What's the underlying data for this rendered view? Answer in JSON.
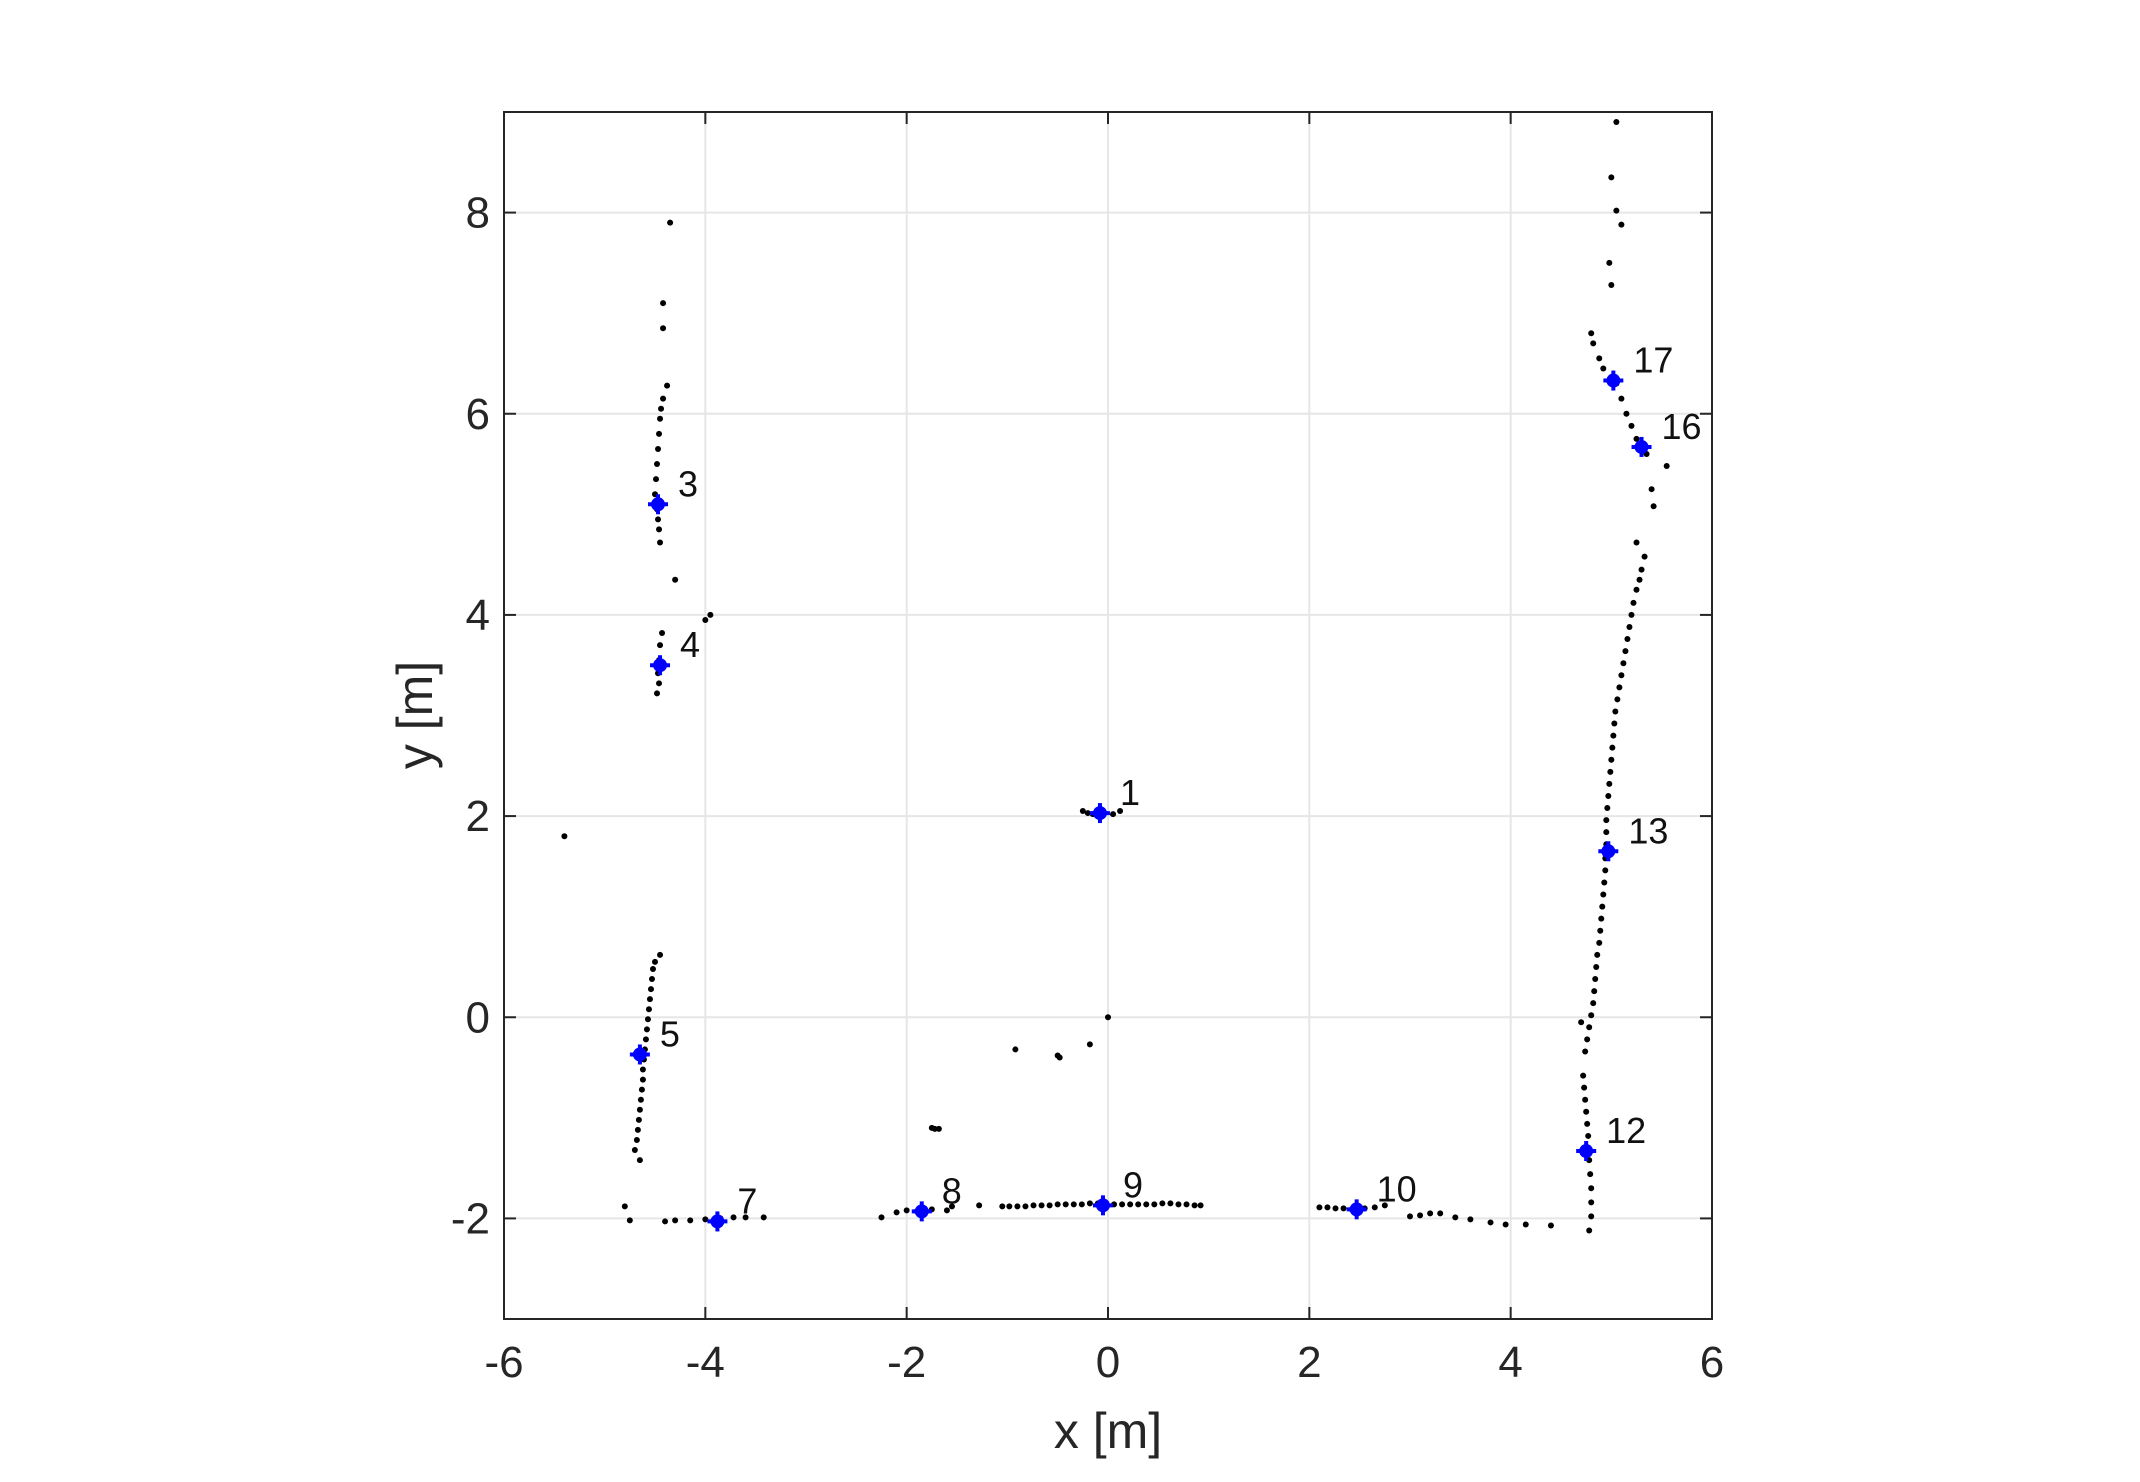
{
  "chart_data": {
    "type": "scatter",
    "title": "",
    "xlabel": "x [m]",
    "ylabel": "y [m]",
    "xlim": [
      -6,
      6
    ],
    "ylim": [
      -3,
      9
    ],
    "xticks": [
      -6,
      -4,
      -2,
      0,
      2,
      4,
      6
    ],
    "yticks": [
      -2,
      0,
      2,
      4,
      6,
      8
    ],
    "xtick_labels": [
      "-6",
      "-4",
      "-2",
      "0",
      "2",
      "4",
      "6"
    ],
    "ytick_labels": [
      "-2",
      "0",
      "2",
      "4",
      "6",
      "8"
    ],
    "grid": true,
    "legend": "none",
    "colors": {
      "scan_points": "#000000",
      "landmarks": "#0000ff",
      "grid": "#e6e6e6",
      "axes": "#262626"
    },
    "series": [
      {
        "marker": "dot",
        "points": [
          [
            -4.35,
            7.9
          ],
          [
            -4.42,
            7.1
          ],
          [
            -4.42,
            6.85
          ],
          [
            -4.38,
            6.28
          ],
          [
            -4.42,
            6.15
          ],
          [
            -4.44,
            6.05
          ],
          [
            -4.45,
            5.95
          ],
          [
            -4.46,
            5.8
          ],
          [
            -4.47,
            5.65
          ],
          [
            -4.48,
            5.5
          ],
          [
            -4.49,
            5.35
          ],
          [
            -4.5,
            5.2
          ],
          [
            -4.48,
            5.05
          ],
          [
            -4.47,
            4.95
          ],
          [
            -4.46,
            4.85
          ],
          [
            -4.45,
            4.72
          ],
          [
            -4.3,
            4.35
          ],
          [
            -4.0,
            3.95
          ],
          [
            -3.95,
            4.0
          ],
          [
            -4.43,
            3.82
          ],
          [
            -4.45,
            3.7
          ],
          [
            -4.46,
            3.55
          ],
          [
            -4.47,
            3.42
          ],
          [
            -4.46,
            3.32
          ],
          [
            -4.48,
            3.22
          ],
          [
            -5.4,
            1.8
          ],
          [
            -4.45,
            0.62
          ],
          [
            -4.5,
            0.55
          ],
          [
            -4.52,
            0.48
          ],
          [
            -4.53,
            0.38
          ],
          [
            -4.54,
            0.28
          ],
          [
            -4.55,
            0.18
          ],
          [
            -4.56,
            0.08
          ],
          [
            -4.57,
            -0.02
          ],
          [
            -4.58,
            -0.12
          ],
          [
            -4.59,
            -0.22
          ],
          [
            -4.6,
            -0.32
          ],
          [
            -4.61,
            -0.42
          ],
          [
            -4.62,
            -0.52
          ],
          [
            -4.62,
            -0.62
          ],
          [
            -4.63,
            -0.72
          ],
          [
            -4.64,
            -0.82
          ],
          [
            -4.65,
            -0.92
          ],
          [
            -4.66,
            -1.02
          ],
          [
            -4.67,
            -1.12
          ],
          [
            -4.68,
            -1.22
          ],
          [
            -4.7,
            -1.32
          ],
          [
            -4.65,
            -1.42
          ],
          [
            -4.8,
            -1.88
          ],
          [
            -4.75,
            -2.02
          ],
          [
            -4.4,
            -2.03
          ],
          [
            -4.3,
            -2.02
          ],
          [
            -4.15,
            -2.02
          ],
          [
            -4.0,
            -2.01
          ],
          [
            -3.85,
            -2.0
          ],
          [
            -3.72,
            -1.99
          ],
          [
            -3.6,
            -1.99
          ],
          [
            -3.42,
            -1.99
          ],
          [
            -2.25,
            -1.99
          ],
          [
            -2.1,
            -1.94
          ],
          [
            -2.0,
            -1.92
          ],
          [
            -1.9,
            -1.93
          ],
          [
            -1.75,
            -1.91
          ],
          [
            -1.6,
            -1.92
          ],
          [
            -1.55,
            -1.88
          ],
          [
            -1.28,
            -1.87
          ],
          [
            -1.75,
            -1.1
          ],
          [
            -1.72,
            -1.11
          ],
          [
            -1.68,
            -1.11
          ],
          [
            -1.05,
            -1.88
          ],
          [
            -0.98,
            -1.88
          ],
          [
            -0.9,
            -1.88
          ],
          [
            -0.82,
            -1.88
          ],
          [
            -0.74,
            -1.87
          ],
          [
            -0.66,
            -1.87
          ],
          [
            -0.58,
            -1.87
          ],
          [
            -0.5,
            -1.86
          ],
          [
            -0.42,
            -1.86
          ],
          [
            -0.34,
            -1.86
          ],
          [
            -0.26,
            -1.86
          ],
          [
            -0.18,
            -1.85
          ],
          [
            -0.1,
            -1.85
          ],
          [
            -0.02,
            -1.86
          ],
          [
            0.06,
            -1.86
          ],
          [
            0.14,
            -1.86
          ],
          [
            0.22,
            -1.86
          ],
          [
            0.3,
            -1.86
          ],
          [
            0.38,
            -1.86
          ],
          [
            0.46,
            -1.86
          ],
          [
            0.54,
            -1.85
          ],
          [
            0.62,
            -1.85
          ],
          [
            0.7,
            -1.86
          ],
          [
            0.78,
            -1.86
          ],
          [
            0.86,
            -1.87
          ],
          [
            0.92,
            -1.87
          ],
          [
            -0.92,
            -0.32
          ],
          [
            -0.5,
            -0.38
          ],
          [
            -0.48,
            -0.4
          ],
          [
            -0.18,
            -0.27
          ],
          [
            0.0,
            0.0
          ],
          [
            -0.25,
            2.05
          ],
          [
            -0.2,
            2.03
          ],
          [
            -0.15,
            2.02
          ],
          [
            -0.05,
            2.01
          ],
          [
            0.05,
            2.02
          ],
          [
            0.12,
            2.05
          ],
          [
            2.1,
            -1.89
          ],
          [
            2.18,
            -1.89
          ],
          [
            2.26,
            -1.9
          ],
          [
            2.34,
            -1.9
          ],
          [
            2.42,
            -1.91
          ],
          [
            2.55,
            -1.9
          ],
          [
            2.65,
            -1.89
          ],
          [
            2.75,
            -1.87
          ],
          [
            3.0,
            -1.98
          ],
          [
            3.1,
            -1.97
          ],
          [
            3.2,
            -1.95
          ],
          [
            3.3,
            -1.95
          ],
          [
            3.45,
            -1.99
          ],
          [
            3.6,
            -2.01
          ],
          [
            3.8,
            -2.04
          ],
          [
            3.95,
            -2.06
          ],
          [
            4.15,
            -2.06
          ],
          [
            4.4,
            -2.07
          ],
          [
            5.05,
            8.9
          ],
          [
            5.0,
            8.35
          ],
          [
            5.05,
            8.02
          ],
          [
            5.1,
            7.88
          ],
          [
            4.98,
            7.5
          ],
          [
            5.0,
            7.28
          ],
          [
            4.8,
            6.8
          ],
          [
            4.82,
            6.7
          ],
          [
            4.88,
            6.55
          ],
          [
            4.92,
            6.45
          ],
          [
            5.05,
            6.3
          ],
          [
            5.1,
            6.15
          ],
          [
            5.15,
            6.0
          ],
          [
            5.2,
            5.88
          ],
          [
            5.25,
            5.75
          ],
          [
            5.35,
            5.6
          ],
          [
            5.55,
            5.48
          ],
          [
            5.4,
            5.25
          ],
          [
            5.42,
            5.08
          ],
          [
            5.25,
            4.72
          ],
          [
            5.33,
            4.58
          ],
          [
            5.3,
            4.45
          ],
          [
            5.28,
            4.35
          ],
          [
            5.25,
            4.25
          ],
          [
            5.22,
            4.12
          ],
          [
            5.2,
            4.0
          ],
          [
            5.18,
            3.88
          ],
          [
            5.16,
            3.76
          ],
          [
            5.14,
            3.64
          ],
          [
            5.12,
            3.52
          ],
          [
            5.1,
            3.4
          ],
          [
            5.08,
            3.28
          ],
          [
            5.06,
            3.16
          ],
          [
            5.04,
            3.04
          ],
          [
            5.03,
            2.92
          ],
          [
            5.02,
            2.8
          ],
          [
            5.01,
            2.68
          ],
          [
            5.0,
            2.56
          ],
          [
            4.99,
            2.44
          ],
          [
            4.98,
            2.32
          ],
          [
            4.97,
            2.2
          ],
          [
            4.96,
            2.08
          ],
          [
            4.95,
            1.96
          ],
          [
            4.95,
            1.84
          ],
          [
            4.95,
            1.72
          ],
          [
            4.94,
            1.58
          ],
          [
            4.94,
            1.46
          ],
          [
            4.93,
            1.34
          ],
          [
            4.92,
            1.22
          ],
          [
            4.91,
            1.1
          ],
          [
            4.9,
            0.98
          ],
          [
            4.89,
            0.86
          ],
          [
            4.88,
            0.74
          ],
          [
            4.86,
            0.62
          ],
          [
            4.85,
            0.5
          ],
          [
            4.84,
            0.38
          ],
          [
            4.83,
            0.26
          ],
          [
            4.82,
            0.14
          ],
          [
            4.8,
            0.02
          ],
          [
            4.78,
            -0.1
          ],
          [
            4.76,
            -0.22
          ],
          [
            4.74,
            -0.34
          ],
          [
            4.7,
            -0.05
          ],
          [
            4.72,
            -0.58
          ],
          [
            4.73,
            -0.7
          ],
          [
            4.74,
            -0.82
          ],
          [
            4.75,
            -0.94
          ],
          [
            4.76,
            -1.06
          ],
          [
            4.77,
            -1.18
          ],
          [
            4.78,
            -1.42
          ],
          [
            4.79,
            -1.56
          ],
          [
            4.8,
            -1.7
          ],
          [
            4.8,
            -1.84
          ],
          [
            4.8,
            -1.98
          ],
          [
            4.78,
            -2.12
          ]
        ]
      },
      {
        "marker": "plus",
        "labels": [
          "1",
          "3",
          "4",
          "5",
          "7",
          "8",
          "9",
          "10",
          "12",
          "13",
          "16",
          "17"
        ],
        "x": [
          -0.08,
          -4.47,
          -4.45,
          -4.65,
          -3.88,
          -1.85,
          -0.05,
          2.47,
          4.75,
          4.97,
          5.3,
          5.02
        ],
        "y": [
          2.03,
          5.1,
          3.5,
          -0.37,
          -2.03,
          -1.93,
          -1.87,
          -1.91,
          -1.33,
          1.65,
          5.67,
          6.33
        ]
      }
    ]
  }
}
